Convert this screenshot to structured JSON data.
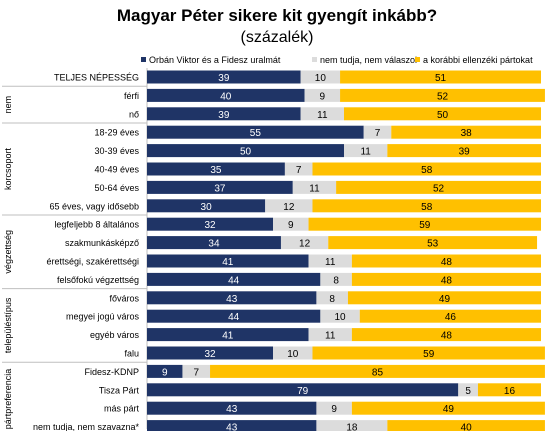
{
  "chart_data": {
    "type": "bar",
    "stacked": true,
    "orientation": "horizontal",
    "title": "Magyar Péter sikere kit gyengít inkább?",
    "subtitle": "(százalék)",
    "xlim": [
      0,
      100
    ],
    "legend_position": "top",
    "series": [
      {
        "name": "Orbán Viktor és a Fidesz uralmát",
        "color": "#1f3466"
      },
      {
        "name": "nem tudja, nem válaszol",
        "color": "#dcdcdc"
      },
      {
        "name": "a korábbi ellenzéki pártokat",
        "color": "#ffc000"
      }
    ],
    "groups": [
      {
        "name": "",
        "rows": [
          {
            "label": "TELJES NÉPESSÉG",
            "values": [
              39,
              10,
              51
            ]
          }
        ]
      },
      {
        "name": "nem",
        "rows": [
          {
            "label": "férfi",
            "values": [
              40,
              9,
              52
            ]
          },
          {
            "label": "nő",
            "values": [
              39,
              11,
              50
            ]
          }
        ]
      },
      {
        "name": "korcsoport",
        "rows": [
          {
            "label": "18-29 éves",
            "values": [
              55,
              7,
              38
            ]
          },
          {
            "label": "30-39 éves",
            "values": [
              50,
              11,
              39
            ]
          },
          {
            "label": "40-49 éves",
            "values": [
              35,
              7,
              58
            ]
          },
          {
            "label": "50-64 éves",
            "values": [
              37,
              11,
              52
            ]
          },
          {
            "label": "65 éves, vagy idősebb",
            "values": [
              30,
              12,
              58
            ]
          }
        ]
      },
      {
        "name": "végzettség",
        "rows": [
          {
            "label": "legfeljebb 8 általános",
            "values": [
              32,
              9,
              59
            ]
          },
          {
            "label": "szakmunkásképző",
            "values": [
              34,
              12,
              53
            ]
          },
          {
            "label": "érettségi, szakérettségi",
            "values": [
              41,
              11,
              48
            ]
          },
          {
            "label": "felsőfokú végzettség",
            "values": [
              44,
              8,
              48
            ]
          }
        ]
      },
      {
        "name": "településtípus",
        "rows": [
          {
            "label": "főváros",
            "values": [
              43,
              8,
              49
            ]
          },
          {
            "label": "megyei jogú város",
            "values": [
              44,
              10,
              46
            ]
          },
          {
            "label": "egyéb város",
            "values": [
              41,
              11,
              48
            ]
          },
          {
            "label": "falu",
            "values": [
              32,
              10,
              59
            ]
          }
        ]
      },
      {
        "name": "pártpreferencia",
        "rows": [
          {
            "label": "Fidesz-KDNP",
            "values": [
              9,
              7,
              85
            ]
          },
          {
            "label": "Tisza Párt",
            "values": [
              79,
              5,
              16
            ]
          },
          {
            "label": "más párt",
            "values": [
              43,
              9,
              49
            ]
          },
          {
            "label": "nem tudja, nem szavazna*",
            "values": [
              43,
              18,
              40
            ]
          }
        ]
      }
    ]
  }
}
